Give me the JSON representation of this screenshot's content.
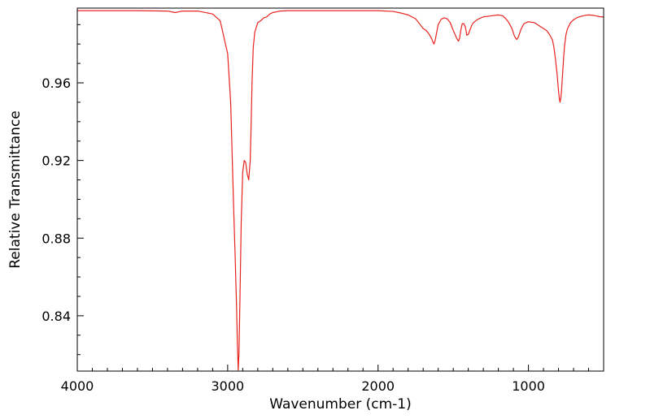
{
  "chart_data": {
    "type": "line",
    "title": "",
    "xlabel": "Wavenumber (cm-1)",
    "ylabel": "Relative Transmittance",
    "xlim": [
      4000,
      500
    ],
    "ylim": [
      0.8115,
      0.9985
    ],
    "x_ticks": [
      4000,
      3000,
      2000,
      1000
    ],
    "x_tick_labels": [
      "4000",
      "3000",
      "2000",
      "1000"
    ],
    "y_ticks": [
      0.84,
      0.88,
      0.92,
      0.96
    ],
    "y_tick_labels": [
      "0.84",
      "0.88",
      "0.92",
      "0.96"
    ],
    "grid": false,
    "series": [
      {
        "color": "#e8231f",
        "x": [
          4000,
          3800,
          3600,
          3400,
          3350,
          3300,
          3200,
          3100,
          3050,
          3000,
          2980,
          2960,
          2950,
          2940,
          2935,
          2930,
          2925,
          2918,
          2910,
          2900,
          2890,
          2880,
          2870,
          2860,
          2850,
          2845,
          2838,
          2830,
          2820,
          2800,
          2780,
          2760,
          2740,
          2720,
          2700,
          2650,
          2600,
          2500,
          2400,
          2300,
          2200,
          2100,
          2000,
          1900,
          1850,
          1800,
          1750,
          1720,
          1700,
          1680,
          1660,
          1645,
          1635,
          1628,
          1620,
          1610,
          1600,
          1580,
          1560,
          1540,
          1520,
          1500,
          1480,
          1470,
          1465,
          1458,
          1450,
          1440,
          1430,
          1420,
          1415,
          1410,
          1400,
          1390,
          1380,
          1375,
          1365,
          1350,
          1330,
          1300,
          1250,
          1200,
          1170,
          1150,
          1130,
          1110,
          1095,
          1085,
          1080,
          1075,
          1065,
          1050,
          1030,
          1000,
          960,
          920,
          900,
          880,
          860,
          840,
          830,
          820,
          810,
          800,
          795,
          790,
          785,
          780,
          775,
          770,
          765,
          760,
          755,
          750,
          740,
          720,
          700,
          680,
          650,
          620,
          600,
          570,
          550,
          520,
          500
        ],
        "y": [
          0.9972,
          0.9972,
          0.9972,
          0.997,
          0.9962,
          0.997,
          0.997,
          0.9955,
          0.992,
          0.975,
          0.95,
          0.895,
          0.87,
          0.842,
          0.825,
          0.812,
          0.82,
          0.85,
          0.888,
          0.914,
          0.92,
          0.919,
          0.913,
          0.91,
          0.92,
          0.935,
          0.96,
          0.978,
          0.986,
          0.991,
          0.992,
          0.9935,
          0.994,
          0.9955,
          0.9962,
          0.997,
          0.9972,
          0.9972,
          0.9972,
          0.9972,
          0.9972,
          0.9972,
          0.9972,
          0.9968,
          0.996,
          0.995,
          0.993,
          0.99,
          0.988,
          0.987,
          0.985,
          0.983,
          0.981,
          0.98,
          0.982,
          0.986,
          0.99,
          0.9928,
          0.9935,
          0.993,
          0.991,
          0.987,
          0.9835,
          0.982,
          0.9815,
          0.983,
          0.987,
          0.9905,
          0.9905,
          0.989,
          0.987,
          0.9845,
          0.985,
          0.987,
          0.989,
          0.99,
          0.991,
          0.992,
          0.993,
          0.994,
          0.9945,
          0.995,
          0.9945,
          0.993,
          0.991,
          0.988,
          0.9845,
          0.983,
          0.9825,
          0.9825,
          0.984,
          0.9875,
          0.9905,
          0.9915,
          0.991,
          0.989,
          0.988,
          0.987,
          0.985,
          0.982,
          0.978,
          0.972,
          0.965,
          0.956,
          0.952,
          0.95,
          0.952,
          0.956,
          0.962,
          0.968,
          0.974,
          0.979,
          0.982,
          0.985,
          0.988,
          0.991,
          0.9925,
          0.9935,
          0.9943,
          0.9948,
          0.995,
          0.9948,
          0.9945,
          0.994,
          0.994
        ]
      }
    ]
  }
}
